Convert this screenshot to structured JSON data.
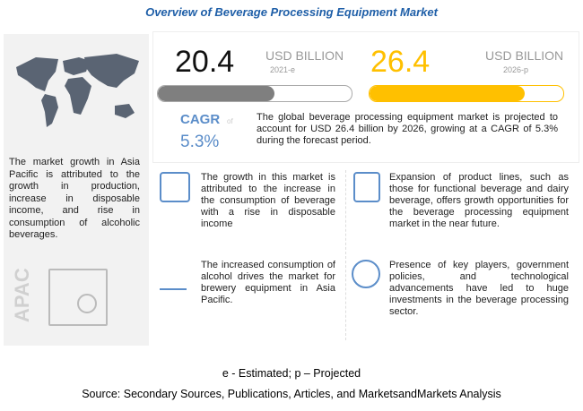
{
  "title": "Overview of Beverage Processing Equipment Market",
  "left_panel": {
    "text": "The market growth in Asia Pacific is attributed to the growth in production, increase in disposable income, and rise in consumption of alcoholic beverages.",
    "region": "APAC"
  },
  "stats": {
    "value_2021": "20.4",
    "unit_2021": "USD BILLION",
    "year_2021": "2021-e",
    "progress_2021": 0.6,
    "value_2026": "26.4",
    "unit_2026": "USD BILLION",
    "year_2026": "2026-p",
    "progress_2026": 0.8,
    "cagr_label": "CAGR",
    "cagr_of": "of",
    "cagr_value": "5.3%",
    "summary": "The global beverage processing equipment market is projected to account for USD 26.4 billion by 2026, growing at a CAGR of 5.3% during the forecast period."
  },
  "cards": [
    {
      "text": "The growth in this market is attributed to the increase in the consumption of beverage with a rise in disposable income",
      "icon": "chart-analysis-icon"
    },
    {
      "text": "Expansion of product lines, such as those for functional beverage and dairy beverage, offers growth opportunities for the beverage processing equipment market in the near future.",
      "icon": "money-icon"
    },
    {
      "text": "The increased consumption of alcohol drives the market for brewery equipment in Asia Pacific.",
      "icon": "dollar-growth-icon"
    },
    {
      "text": "Presence of key players, government policies, and technological advancements have led to huge investments in the beverage processing sector.",
      "icon": "globe-icon"
    }
  ],
  "footer": {
    "legend": "e - Estimated; p – Projected",
    "source": "Source: Secondary Sources, Publications, Articles, and MarketsandMarkets Analysis"
  },
  "colors": {
    "title": "#1f5fa8",
    "accent": "#ffc000",
    "gray": "#7f7f7f",
    "cagr": "#5b8dc9"
  }
}
